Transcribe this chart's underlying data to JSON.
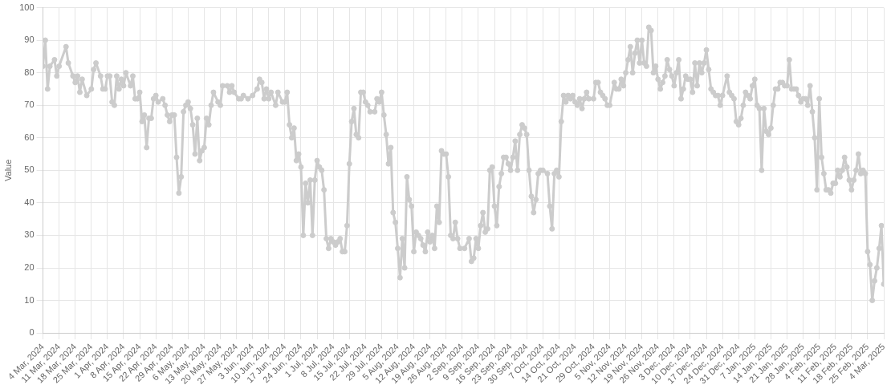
{
  "chart_data": {
    "type": "line",
    "ylabel": "Value",
    "color": "#cccccc",
    "marker": "circle",
    "line_style": "solid",
    "grid": true,
    "xlim": [
      "2024-03-04",
      "2025-03-04"
    ],
    "ylim": [
      0,
      100
    ],
    "yticks": [
      0,
      10,
      20,
      30,
      40,
      50,
      60,
      70,
      80,
      90,
      100
    ],
    "xticks": [
      {
        "value": "2024-03-04",
        "label": "4 Mar, 2024"
      },
      {
        "value": "2024-03-11",
        "label": "11 Mar, 2024"
      },
      {
        "value": "2024-03-18",
        "label": "18 Mar, 2024"
      },
      {
        "value": "2024-03-25",
        "label": "25 Mar, 2024"
      },
      {
        "value": "2024-04-01",
        "label": "1 Apr, 2024"
      },
      {
        "value": "2024-04-08",
        "label": "8 Apr, 2024"
      },
      {
        "value": "2024-04-15",
        "label": "15 Apr, 2024"
      },
      {
        "value": "2024-04-22",
        "label": "22 Apr, 2024"
      },
      {
        "value": "2024-04-29",
        "label": "29 Apr, 2024"
      },
      {
        "value": "2024-05-06",
        "label": "6 May, 2024"
      },
      {
        "value": "2024-05-13",
        "label": "13 May, 2024"
      },
      {
        "value": "2024-05-20",
        "label": "20 May, 2024"
      },
      {
        "value": "2024-05-27",
        "label": "27 May, 2024"
      },
      {
        "value": "2024-06-03",
        "label": "3 Jun, 2024"
      },
      {
        "value": "2024-06-10",
        "label": "10 Jun, 2024"
      },
      {
        "value": "2024-06-17",
        "label": "17 Jun, 2024"
      },
      {
        "value": "2024-06-24",
        "label": "24 Jun, 2024"
      },
      {
        "value": "2024-07-01",
        "label": "1 Jul, 2024"
      },
      {
        "value": "2024-07-08",
        "label": "8 Jul, 2024"
      },
      {
        "value": "2024-07-15",
        "label": "15 Jul, 2024"
      },
      {
        "value": "2024-07-22",
        "label": "22 Jul, 2024"
      },
      {
        "value": "2024-07-29",
        "label": "29 Jul, 2024"
      },
      {
        "value": "2024-08-05",
        "label": "5 Aug, 2024"
      },
      {
        "value": "2024-08-12",
        "label": "12 Aug, 2024"
      },
      {
        "value": "2024-08-19",
        "label": "19 Aug, 2024"
      },
      {
        "value": "2024-08-26",
        "label": "26 Aug, 2024"
      },
      {
        "value": "2024-09-02",
        "label": "2 Sep, 2024"
      },
      {
        "value": "2024-09-09",
        "label": "9 Sep, 2024"
      },
      {
        "value": "2024-09-16",
        "label": "16 Sep, 2024"
      },
      {
        "value": "2024-09-23",
        "label": "23 Sep, 2024"
      },
      {
        "value": "2024-09-30",
        "label": "30 Sep, 2024"
      },
      {
        "value": "2024-10-07",
        "label": "7 Oct, 2024"
      },
      {
        "value": "2024-10-14",
        "label": "14 Oct, 2024"
      },
      {
        "value": "2024-10-21",
        "label": "21 Oct, 2024"
      },
      {
        "value": "2024-10-29",
        "label": "29 Oct, 2024"
      },
      {
        "value": "2024-11-05",
        "label": "5 Nov, 2024"
      },
      {
        "value": "2024-11-12",
        "label": "12 Nov, 2024"
      },
      {
        "value": "2024-11-19",
        "label": "19 Nov, 2024"
      },
      {
        "value": "2024-11-26",
        "label": "26 Nov, 2024"
      },
      {
        "value": "2024-12-03",
        "label": "3 Dec, 2024"
      },
      {
        "value": "2024-12-10",
        "label": "10 Dec, 2024"
      },
      {
        "value": "2024-12-17",
        "label": "17 Dec, 2024"
      },
      {
        "value": "2024-12-24",
        "label": "24 Dec, 2024"
      },
      {
        "value": "2024-12-31",
        "label": "31 Dec, 2024"
      },
      {
        "value": "2025-01-07",
        "label": "7 Jan, 2025"
      },
      {
        "value": "2025-01-14",
        "label": "14 Jan, 2025"
      },
      {
        "value": "2025-01-21",
        "label": "21 Jan, 2025"
      },
      {
        "value": "2025-01-28",
        "label": "28 Jan, 2025"
      },
      {
        "value": "2025-02-04",
        "label": "4 Feb, 2025"
      },
      {
        "value": "2025-02-11",
        "label": "11 Feb, 2025"
      },
      {
        "value": "2025-02-18",
        "label": "18 Feb, 2025"
      },
      {
        "value": "2025-02-25",
        "label": "25 Feb, 2025"
      },
      {
        "value": "2025-03-04",
        "label": "4 Mar, 2025"
      }
    ],
    "x": [
      "2024-03-04",
      "2024-03-05",
      "2024-03-06",
      "2024-03-07",
      "2024-03-09",
      "2024-03-10",
      "2024-03-11",
      "2024-03-14",
      "2024-03-15",
      "2024-03-17",
      "2024-03-18",
      "2024-03-19",
      "2024-03-20",
      "2024-03-21",
      "2024-03-23",
      "2024-03-25",
      "2024-03-26",
      "2024-03-27",
      "2024-03-29",
      "2024-03-30",
      "2024-03-31",
      "2024-04-01",
      "2024-04-02",
      "2024-04-03",
      "2024-04-04",
      "2024-04-05",
      "2024-04-06",
      "2024-04-07",
      "2024-04-08",
      "2024-04-09",
      "2024-04-11",
      "2024-04-12",
      "2024-04-13",
      "2024-04-14",
      "2024-04-15",
      "2024-04-16",
      "2024-04-17",
      "2024-04-18",
      "2024-04-19",
      "2024-04-20",
      "2024-04-21",
      "2024-04-22",
      "2024-04-23",
      "2024-04-25",
      "2024-04-26",
      "2024-04-27",
      "2024-04-28",
      "2024-04-29",
      "2024-04-30",
      "2024-05-01",
      "2024-05-02",
      "2024-05-03",
      "2024-05-04",
      "2024-05-05",
      "2024-05-06",
      "2024-05-07",
      "2024-05-08",
      "2024-05-09",
      "2024-05-10",
      "2024-05-11",
      "2024-05-12",
      "2024-05-13",
      "2024-05-14",
      "2024-05-15",
      "2024-05-16",
      "2024-05-17",
      "2024-05-19",
      "2024-05-20",
      "2024-05-21",
      "2024-05-23",
      "2024-05-24",
      "2024-05-25",
      "2024-05-26",
      "2024-05-28",
      "2024-05-29",
      "2024-05-30",
      "2024-06-01",
      "2024-06-03",
      "2024-06-05",
      "2024-06-06",
      "2024-06-07",
      "2024-06-08",
      "2024-06-09",
      "2024-06-10",
      "2024-06-11",
      "2024-06-13",
      "2024-06-14",
      "2024-06-16",
      "2024-06-17",
      "2024-06-18",
      "2024-06-19",
      "2024-06-20",
      "2024-06-21",
      "2024-06-22",
      "2024-06-23",
      "2024-06-24",
      "2024-06-25",
      "2024-06-26",
      "2024-06-27",
      "2024-06-28",
      "2024-06-29",
      "2024-06-30",
      "2024-07-01",
      "2024-07-02",
      "2024-07-03",
      "2024-07-04",
      "2024-07-05",
      "2024-07-06",
      "2024-07-07",
      "2024-07-08",
      "2024-07-09",
      "2024-07-10",
      "2024-07-11",
      "2024-07-12",
      "2024-07-13",
      "2024-07-14",
      "2024-07-15",
      "2024-07-16",
      "2024-07-17",
      "2024-07-18",
      "2024-07-19",
      "2024-07-20",
      "2024-07-21",
      "2024-07-22",
      "2024-07-23",
      "2024-07-24",
      "2024-07-26",
      "2024-07-27",
      "2024-07-28",
      "2024-07-29",
      "2024-07-30",
      "2024-07-31",
      "2024-08-01",
      "2024-08-02",
      "2024-08-03",
      "2024-08-04",
      "2024-08-05",
      "2024-08-06",
      "2024-08-07",
      "2024-08-08",
      "2024-08-09",
      "2024-08-10",
      "2024-08-11",
      "2024-08-12",
      "2024-08-13",
      "2024-08-14",
      "2024-08-15",
      "2024-08-16",
      "2024-08-17",
      "2024-08-18",
      "2024-08-19",
      "2024-08-20",
      "2024-08-21",
      "2024-08-22",
      "2024-08-23",
      "2024-08-24",
      "2024-08-25",
      "2024-08-26",
      "2024-08-27",
      "2024-08-28",
      "2024-08-29",
      "2024-08-30",
      "2024-08-31",
      "2024-09-01",
      "2024-09-03",
      "2024-09-05",
      "2024-09-06",
      "2024-09-07",
      "2024-09-08",
      "2024-09-09",
      "2024-09-10",
      "2024-09-11",
      "2024-09-12",
      "2024-09-13",
      "2024-09-14",
      "2024-09-15",
      "2024-09-16",
      "2024-09-17",
      "2024-09-18",
      "2024-09-19",
      "2024-09-20",
      "2024-09-21",
      "2024-09-22",
      "2024-09-23",
      "2024-09-24",
      "2024-09-25",
      "2024-09-26",
      "2024-09-27",
      "2024-09-28",
      "2024-09-29",
      "2024-09-30",
      "2024-10-01",
      "2024-10-02",
      "2024-10-03",
      "2024-10-04",
      "2024-10-05",
      "2024-10-06",
      "2024-10-07",
      "2024-10-09",
      "2024-10-10",
      "2024-10-11",
      "2024-10-12",
      "2024-10-13",
      "2024-10-14",
      "2024-10-15",
      "2024-10-16",
      "2024-10-17",
      "2024-10-18",
      "2024-10-19",
      "2024-10-20",
      "2024-10-21",
      "2024-10-22",
      "2024-10-23",
      "2024-10-24",
      "2024-10-25",
      "2024-10-26",
      "2024-10-27",
      "2024-10-29",
      "2024-10-30",
      "2024-10-31",
      "2024-11-01",
      "2024-11-02",
      "2024-11-03",
      "2024-11-04",
      "2024-11-05",
      "2024-11-07",
      "2024-11-08",
      "2024-11-09",
      "2024-11-10",
      "2024-11-11",
      "2024-11-12",
      "2024-11-13",
      "2024-11-14",
      "2024-11-15",
      "2024-11-16",
      "2024-11-17",
      "2024-11-18",
      "2024-11-19",
      "2024-11-20",
      "2024-11-21",
      "2024-11-22",
      "2024-11-23",
      "2024-11-24",
      "2024-11-25",
      "2024-11-26",
      "2024-11-27",
      "2024-11-28",
      "2024-11-29",
      "2024-11-30",
      "2024-12-01",
      "2024-12-02",
      "2024-12-03",
      "2024-12-04",
      "2024-12-05",
      "2024-12-06",
      "2024-12-07",
      "2024-12-08",
      "2024-12-09",
      "2024-12-10",
      "2024-12-11",
      "2024-12-12",
      "2024-12-13",
      "2024-12-14",
      "2024-12-15",
      "2024-12-16",
      "2024-12-17",
      "2024-12-18",
      "2024-12-19",
      "2024-12-20",
      "2024-12-21",
      "2024-12-22",
      "2024-12-23",
      "2024-12-24",
      "2024-12-26",
      "2024-12-27",
      "2024-12-28",
      "2024-12-29",
      "2024-12-30",
      "2024-12-31",
      "2025-01-01",
      "2025-01-02",
      "2025-01-03",
      "2025-01-04",
      "2025-01-05",
      "2025-01-06",
      "2025-01-07",
      "2025-01-08",
      "2025-01-09",
      "2025-01-10",
      "2025-01-11",
      "2025-01-12",
      "2025-01-13",
      "2025-01-14",
      "2025-01-15",
      "2025-01-16",
      "2025-01-17",
      "2025-01-18",
      "2025-01-19",
      "2025-01-20",
      "2025-01-21",
      "2025-01-22",
      "2025-01-23",
      "2025-01-24",
      "2025-01-25",
      "2025-01-26",
      "2025-01-27",
      "2025-01-28",
      "2025-01-29",
      "2025-01-30",
      "2025-01-31",
      "2025-02-01",
      "2025-02-02",
      "2025-02-03",
      "2025-02-04",
      "2025-02-05",
      "2025-02-06",
      "2025-02-07",
      "2025-02-08",
      "2025-02-09",
      "2025-02-10",
      "2025-02-11",
      "2025-02-12",
      "2025-02-13",
      "2025-02-14",
      "2025-02-15",
      "2025-02-16",
      "2025-02-17",
      "2025-02-18",
      "2025-02-19",
      "2025-02-20",
      "2025-02-21",
      "2025-02-22",
      "2025-02-23",
      "2025-02-24",
      "2025-02-25",
      "2025-02-26",
      "2025-02-27",
      "2025-02-28",
      "2025-03-01",
      "2025-03-02",
      "2025-03-03",
      "2025-03-04"
    ],
    "values": [
      82,
      90,
      75,
      82,
      84,
      79,
      82,
      88,
      83,
      79,
      77,
      79,
      74,
      78,
      73,
      75,
      81,
      83,
      79,
      75,
      75,
      79,
      79,
      71,
      70,
      79,
      75,
      78,
      76,
      80,
      76,
      79,
      72,
      72,
      74,
      65,
      67,
      57,
      66,
      66,
      72,
      73,
      71,
      72,
      70,
      67,
      65,
      67,
      67,
      54,
      43,
      48,
      68,
      70,
      71,
      69,
      64,
      55,
      66,
      53,
      56,
      57,
      66,
      64,
      70,
      74,
      71,
      70,
      76,
      76,
      74,
      76,
      74,
      72,
      72,
      73,
      72,
      73,
      75,
      78,
      77,
      72,
      75,
      72,
      74,
      70,
      74,
      71,
      71,
      74,
      64,
      60,
      63,
      53,
      55,
      51,
      30,
      46,
      40,
      47,
      30,
      47,
      53,
      51,
      50,
      44,
      29,
      26,
      29,
      28,
      27,
      28,
      29,
      25,
      25,
      33,
      52,
      65,
      69,
      61,
      60,
      74,
      74,
      71,
      70,
      68,
      68,
      72,
      71,
      74,
      67,
      61,
      52,
      57,
      37,
      34,
      26,
      17,
      29,
      20,
      48,
      41,
      39,
      25,
      31,
      30,
      29,
      27,
      25,
      31,
      28,
      30,
      26,
      39,
      34,
      56,
      55,
      55,
      48,
      30,
      29,
      34,
      29,
      26,
      26,
      29,
      22,
      23,
      29,
      26,
      33,
      37,
      31,
      32,
      50,
      51,
      39,
      33,
      45,
      49,
      54,
      54,
      52,
      50,
      54,
      59,
      50,
      61,
      64,
      63,
      61,
      50,
      42,
      37,
      41,
      49,
      50,
      50,
      49,
      39,
      32,
      49,
      50,
      48,
      65,
      73,
      71,
      73,
      72,
      73,
      71,
      70,
      72,
      69,
      72,
      74,
      72,
      72,
      77,
      77,
      74,
      73,
      72,
      70,
      70,
      77,
      75,
      75,
      78,
      76,
      80,
      84,
      88,
      80,
      86,
      90,
      83,
      90,
      83,
      82,
      94,
      93,
      80,
      82,
      78,
      75,
      77,
      79,
      84,
      81,
      79,
      76,
      80,
      84,
      72,
      75,
      79,
      78,
      78,
      74,
      83,
      76,
      83,
      80,
      83,
      87,
      81,
      75,
      74,
      73,
      73,
      70,
      73,
      79,
      74,
      73,
      72,
      65,
      64,
      66,
      70,
      74,
      73,
      72,
      76,
      78,
      70,
      69,
      50,
      69,
      62,
      61,
      63,
      70,
      75,
      75,
      77,
      77,
      76,
      76,
      84,
      75,
      75,
      75,
      73,
      71,
      72,
      72,
      70,
      76,
      68,
      60,
      44,
      72,
      54,
      49,
      44,
      44,
      43,
      46,
      46,
      50,
      48,
      50,
      54,
      51,
      47,
      44,
      47,
      50,
      55,
      49,
      50,
      49,
      25,
      21,
      10,
      16,
      20,
      26,
      33,
      15
    ]
  }
}
